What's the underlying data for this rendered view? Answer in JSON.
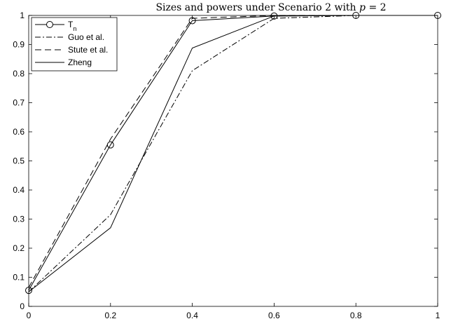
{
  "chart_data": {
    "type": "line",
    "title": "Sizes and powers under Scenario 2 with p = 2",
    "title_prefix": "Sizes and powers under Scenario 2 with ",
    "title_var": "p",
    "title_suffix": " = 2",
    "xlabel": "",
    "ylabel": "",
    "x": [
      0,
      0.2,
      0.4,
      0.6,
      0.8,
      1
    ],
    "xlim": [
      0,
      1
    ],
    "ylim": [
      0,
      1
    ],
    "x_ticks": [
      "0",
      "0.2",
      "0.4",
      "0.6",
      "0.8",
      "1"
    ],
    "y_ticks": [
      "0",
      "0.1",
      "0.2",
      "0.3",
      "0.4",
      "0.5",
      "0.6",
      "0.7",
      "0.8",
      "0.9",
      "1"
    ],
    "grid": false,
    "legend_position": "top-left",
    "legend_tn_main": "T",
    "legend_tn_sub": "n",
    "series": [
      {
        "name": "Tn",
        "values": [
          0.055,
          0.555,
          0.982,
          0.998,
          1.0,
          1.0
        ],
        "style": "solid-circle"
      },
      {
        "name": "Guo et al.",
        "values": [
          0.05,
          0.315,
          0.81,
          0.99,
          1.0,
          1.0
        ],
        "style": "dashdot"
      },
      {
        "name": "Stute et al.",
        "values": [
          0.065,
          0.575,
          0.99,
          1.0,
          1.0,
          1.0
        ],
        "style": "dashed"
      },
      {
        "name": "Zheng",
        "values": [
          0.05,
          0.27,
          0.888,
          0.998,
          1.0,
          1.0
        ],
        "style": "solid"
      }
    ],
    "colors": {
      "line": "#000000",
      "background": "#ffffff"
    }
  }
}
